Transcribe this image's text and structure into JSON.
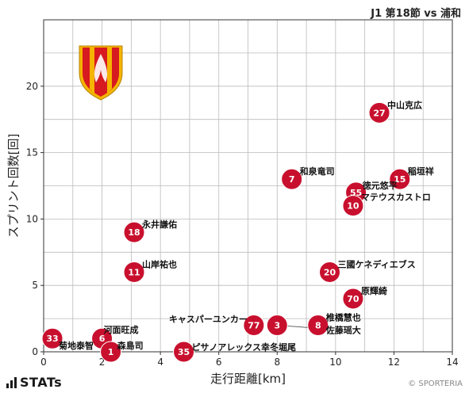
{
  "header": {
    "title": "J1 第18節 vs 浦和"
  },
  "footer": {
    "logo_text": "STATs",
    "credit": "© SPORTERIA"
  },
  "colors": {
    "point": "#c8102e",
    "grid": "#bbbbbb",
    "shield_red": "#d71920",
    "shield_yellow": "#f5b400"
  },
  "icons": {
    "team_emblem": "nagoya-grampus-crest-icon"
  },
  "chart_data": {
    "type": "scatter",
    "title": "",
    "xlabel": "走行距離[km]",
    "ylabel": "スプリント回数[回]",
    "xlim": [
      0,
      14
    ],
    "ylim": [
      0,
      25
    ],
    "xticks": [
      "0",
      "2",
      "4",
      "6",
      "8",
      "10",
      "12",
      "14"
    ],
    "yticks": [
      "0",
      "5",
      "10",
      "15",
      "20"
    ],
    "grid": true,
    "points": [
      {
        "number": "27",
        "name": "中山克広",
        "x": 11.5,
        "y": 18
      },
      {
        "number": "15",
        "name": "稲垣祥",
        "x": 12.2,
        "y": 13
      },
      {
        "number": "7",
        "name": "和泉竜司",
        "x": 8.5,
        "y": 13
      },
      {
        "number": "55",
        "name": "徳元悠平",
        "x": 10.7,
        "y": 12
      },
      {
        "number": "10",
        "name": "マテウスカストロ",
        "x": 10.6,
        "y": 11
      },
      {
        "number": "18",
        "name": "永井謙佑",
        "x": 3.1,
        "y": 9
      },
      {
        "number": "11",
        "name": "山岸祐也",
        "x": 3.1,
        "y": 6
      },
      {
        "number": "20",
        "name": "三國ケネディエブス",
        "x": 9.8,
        "y": 6
      },
      {
        "number": "70",
        "name": "原輝綺",
        "x": 10.6,
        "y": 4
      },
      {
        "number": "77",
        "name": "キャスパーユンカー",
        "x": 7.2,
        "y": 2
      },
      {
        "number": "3",
        "name": "",
        "x": 8.0,
        "y": 2
      },
      {
        "number": "8",
        "name": "椎橋慧也",
        "x": 9.4,
        "y": 2
      },
      {
        "number": "",
        "name": "佐藤瑶大",
        "x": 9.4,
        "y": 2
      },
      {
        "number": "33",
        "name": "菊地泰智",
        "x": 0.3,
        "y": 1
      },
      {
        "number": "6",
        "name": "河面旺成",
        "x": 2.0,
        "y": 1
      },
      {
        "number": "1",
        "name": "森島司",
        "x": 2.3,
        "y": 0
      },
      {
        "number": "35",
        "name": "ピサノアレックス幸冬堀尾",
        "x": 4.8,
        "y": 0
      }
    ]
  }
}
